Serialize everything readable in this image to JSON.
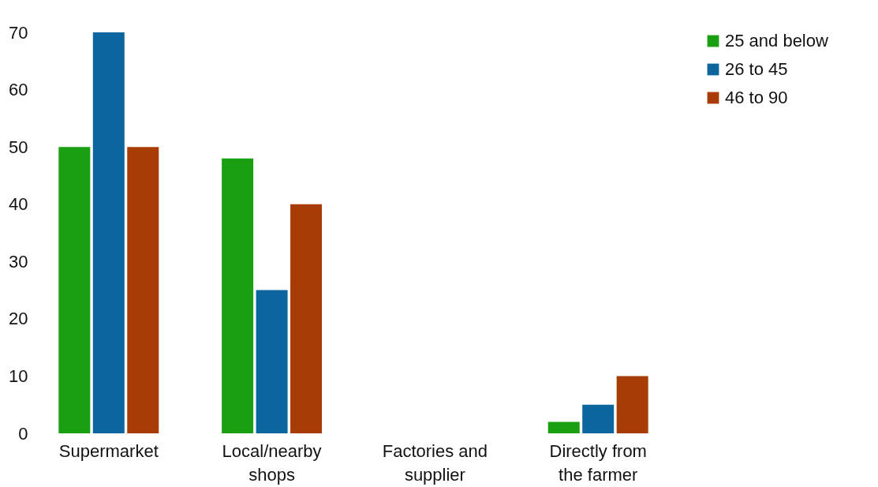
{
  "chart_data": {
    "type": "bar",
    "categories": [
      "Supermarket",
      "Local/nearby shops",
      "Factories and supplier",
      "Directly from the farmer"
    ],
    "series": [
      {
        "name": "25 and below",
        "color": "#1a9e12",
        "values": [
          50,
          48,
          0,
          2
        ]
      },
      {
        "name": "26 to 45",
        "color": "#0b66a0",
        "values": [
          70,
          25,
          0,
          5
        ]
      },
      {
        "name": "46 to 90",
        "color": "#a83c06",
        "values": [
          50,
          40,
          0,
          10
        ]
      }
    ],
    "ylim": [
      0,
      70
    ],
    "yticks": [
      0,
      10,
      20,
      30,
      40,
      50,
      60,
      70
    ],
    "grid": false,
    "legend": "right"
  }
}
